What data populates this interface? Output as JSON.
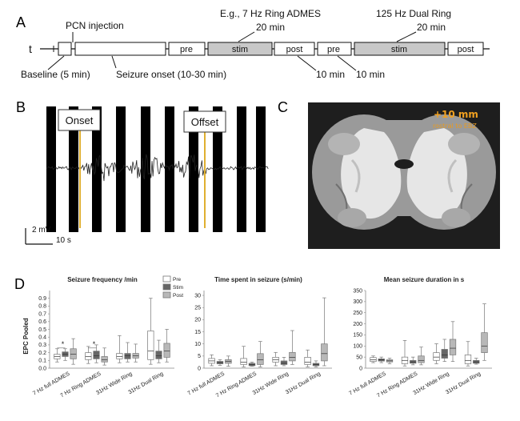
{
  "panelA": {
    "letter": "A",
    "t_label": "t",
    "pcn_injection": "PCN injection",
    "example_label": "E.g., 7 Hz Ring ADMES",
    "example_duration": "20 min",
    "dual_label": "125 Hz Dual Ring",
    "dual_duration": "20 min",
    "baseline": "Baseline (5 min)",
    "seizure_onset": "Seizure onset (10-30 min)",
    "gap1": "10 min",
    "gap2": "10 min",
    "boxes": [
      "pre",
      "stim",
      "post",
      "pre",
      "stim",
      "post"
    ]
  },
  "panelB": {
    "letter": "B",
    "onset": "Onset",
    "offset": "Offset",
    "scale_v": "2 mV",
    "scale_t": "10 s"
  },
  "panelC": {
    "letter": "C",
    "title": "+10 mm",
    "subtitle": "rostral to EBZ"
  },
  "panelD": {
    "letter": "D",
    "ylabel": "EPC Pooled",
    "legend": [
      "Pre",
      "Stim",
      "Post"
    ],
    "colors": {
      "pre": "#ffffff",
      "stim": "#666666",
      "post": "#b8b8b8",
      "stroke": "#777777"
    },
    "chart_data": [
      {
        "type": "box",
        "title": "Seizure frequency /min",
        "categories": [
          "7 Hz full ADMES",
          "7 Hz Ring ADMES",
          "31Hz Wide Ring",
          "31Hz Dual Ring"
        ],
        "ylim": [
          0,
          1.0
        ],
        "yticks": [
          0.0,
          0.1,
          0.2,
          0.3,
          0.4,
          0.5,
          0.6,
          0.7,
          0.8,
          0.9
        ],
        "annotations": [
          "*",
          "*"
        ],
        "series": [
          {
            "name": "Pre",
            "boxes": [
              [
                0.08,
                0.12,
                0.15,
                0.18,
                0.25
              ],
              [
                0.06,
                0.11,
                0.15,
                0.2,
                0.28
              ],
              [
                0.07,
                0.12,
                0.15,
                0.19,
                0.42
              ],
              [
                0.05,
                0.11,
                0.22,
                0.48,
                0.9
              ]
            ]
          },
          {
            "name": "Stim",
            "boxes": [
              [
                0.1,
                0.15,
                0.18,
                0.21,
                0.25
              ],
              [
                0.07,
                0.12,
                0.16,
                0.22,
                0.3
              ],
              [
                0.08,
                0.12,
                0.16,
                0.19,
                0.33
              ],
              [
                0.07,
                0.12,
                0.16,
                0.22,
                0.36
              ]
            ]
          },
          {
            "name": "Post",
            "boxes": [
              [
                0.05,
                0.12,
                0.18,
                0.25,
                0.38
              ],
              [
                0.04,
                0.08,
                0.11,
                0.15,
                0.26
              ],
              [
                0.08,
                0.13,
                0.16,
                0.19,
                0.31
              ],
              [
                0.08,
                0.14,
                0.22,
                0.32,
                0.5
              ]
            ]
          }
        ]
      },
      {
        "type": "box",
        "title": "Time spent in seizure (s/min)",
        "categories": [
          "7 Hz full ADMES",
          "7 Hz Ring ADMES",
          "31Hz Wide Ring",
          "31Hz Dual Ring"
        ],
        "ylim": [
          0,
          32
        ],
        "yticks": [
          0,
          5,
          10,
          15,
          20,
          25,
          30
        ],
        "series": [
          {
            "name": "Pre",
            "boxes": [
              [
                1.0,
                2.0,
                3.0,
                4.0,
                5.5
              ],
              [
                0.5,
                1.5,
                2.5,
                4.0,
                9.0
              ],
              [
                1.0,
                2.5,
                3.5,
                4.5,
                6.5
              ],
              [
                0.5,
                1.5,
                2.5,
                4.5,
                7.5
              ]
            ]
          },
          {
            "name": "Stim",
            "boxes": [
              [
                1.2,
                1.8,
                2.3,
                2.8,
                3.5
              ],
              [
                0.8,
                1.0,
                1.5,
                2.0,
                2.5
              ],
              [
                1.0,
                1.5,
                2.0,
                3.0,
                4.5
              ],
              [
                0.5,
                1.0,
                1.5,
                2.0,
                3.0
              ]
            ]
          },
          {
            "name": "Post",
            "boxes": [
              [
                0.8,
                2.0,
                2.8,
                3.5,
                5.0
              ],
              [
                0.5,
                1.5,
                3.5,
                6.0,
                11.0
              ],
              [
                1.5,
                3.0,
                4.5,
                6.5,
                15.5
              ],
              [
                1.0,
                3.0,
                6.0,
                10.0,
                29.0
              ]
            ]
          }
        ]
      },
      {
        "type": "box",
        "title": "Mean seizure duration in s",
        "categories": [
          "7 Hz full ADMES",
          "7 Hz Ring ADMES",
          "31Hz Wide Ring",
          "31Hz Dual Ring"
        ],
        "ylim": [
          0,
          350
        ],
        "yticks": [
          0,
          50,
          100,
          150,
          200,
          250,
          300,
          350
        ],
        "series": [
          {
            "name": "Pre",
            "boxes": [
              [
                25,
                30,
                38,
                48,
                55
              ],
              [
                10,
                20,
                35,
                50,
                125
              ],
              [
                20,
                35,
                50,
                70,
                110
              ],
              [
                10,
                20,
                35,
                60,
                120
              ]
            ]
          },
          {
            "name": "Stim",
            "boxes": [
              [
                25,
                32,
                38,
                42,
                50
              ],
              [
                15,
                22,
                28,
                35,
                50
              ],
              [
                30,
                45,
                60,
                85,
                130
              ],
              [
                18,
                22,
                28,
                35,
                45
              ]
            ]
          },
          {
            "name": "Post",
            "boxes": [
              [
                20,
                28,
                33,
                38,
                45
              ],
              [
                15,
                25,
                35,
                55,
                95
              ],
              [
                30,
                60,
                90,
                130,
                210
              ],
              [
                35,
                70,
                100,
                160,
                290
              ]
            ]
          }
        ]
      }
    ]
  }
}
